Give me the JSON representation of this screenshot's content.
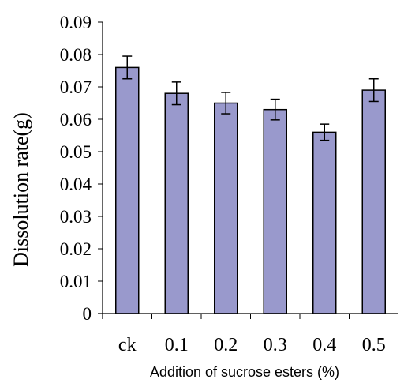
{
  "chart_data": {
    "type": "bar",
    "categories": [
      "ck",
      "0.1",
      "0.2",
      "0.3",
      "0.4",
      "0.5"
    ],
    "values": [
      0.076,
      0.068,
      0.065,
      0.063,
      0.056,
      0.069
    ],
    "errors": [
      0.0035,
      0.0035,
      0.0033,
      0.0032,
      0.0025,
      0.0035
    ],
    "xlabel": "Addition of sucrose esters (%)",
    "ylabel": "Dissolution rate(g)",
    "ylim": [
      0,
      0.09
    ],
    "yticks": [
      "0",
      "0.01",
      "0.02",
      "0.03",
      "0.04",
      "0.05",
      "0.06",
      "0.07",
      "0.08",
      "0.09"
    ],
    "grid": false,
    "legend": "none",
    "colors": {
      "bar": "#9999cc",
      "bar_stroke": "#000000",
      "axis": "#000000",
      "error_bar": "#000000"
    }
  }
}
